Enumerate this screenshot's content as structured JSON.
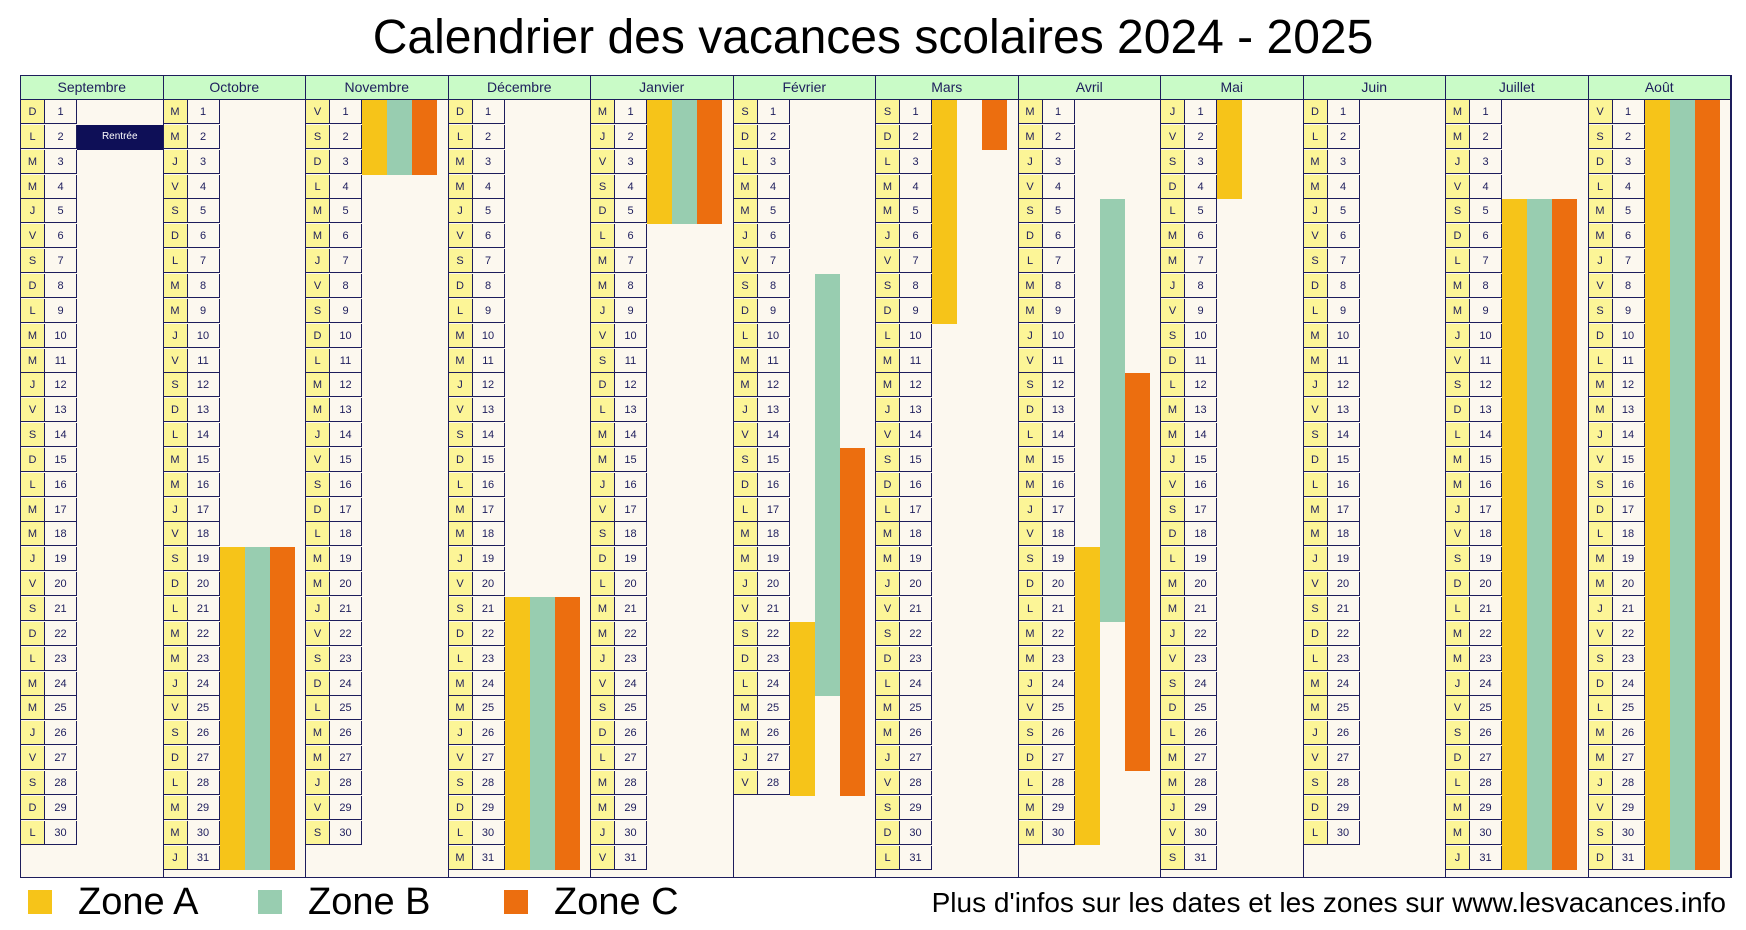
{
  "title": "Calendrier des vacances scolaires 2024 - 2025",
  "colors": {
    "zone_a": "#f6c419",
    "zone_b": "#98cdb0",
    "zone_c": "#ec6e0f",
    "badge": "#0e0f57"
  },
  "months": [
    {
      "name": "Septembre",
      "days": 30,
      "start": 0
    },
    {
      "name": "Octobre",
      "days": 31,
      "start": 2
    },
    {
      "name": "Novembre",
      "days": 30,
      "start": 5
    },
    {
      "name": "Décembre",
      "days": 31,
      "start": 0
    },
    {
      "name": "Janvier",
      "days": 31,
      "start": 3
    },
    {
      "name": "Février",
      "days": 28,
      "start": 6
    },
    {
      "name": "Mars",
      "days": 31,
      "start": 6
    },
    {
      "name": "Avril",
      "days": 30,
      "start": 2
    },
    {
      "name": "Mai",
      "days": 31,
      "start": 4
    },
    {
      "name": "Juin",
      "days": 30,
      "start": 0
    },
    {
      "name": "Juillet",
      "days": 31,
      "start": 2
    },
    {
      "name": "Août",
      "days": 31,
      "start": 5
    }
  ],
  "weekday_letters": [
    "D",
    "L",
    "M",
    "M",
    "J",
    "V",
    "S"
  ],
  "rentree": {
    "label": "Rentrée",
    "day": 2
  },
  "holidays": [
    {
      "month": 1,
      "zone": "A",
      "from": 19,
      "to": 31
    },
    {
      "month": 1,
      "zone": "B",
      "from": 19,
      "to": 31
    },
    {
      "month": 1,
      "zone": "C",
      "from": 19,
      "to": 31
    },
    {
      "month": 2,
      "zone": "A",
      "from": 1,
      "to": 3
    },
    {
      "month": 2,
      "zone": "B",
      "from": 1,
      "to": 3
    },
    {
      "month": 2,
      "zone": "C",
      "from": 1,
      "to": 3
    },
    {
      "month": 3,
      "zone": "A",
      "from": 21,
      "to": 31
    },
    {
      "month": 3,
      "zone": "B",
      "from": 21,
      "to": 31
    },
    {
      "month": 3,
      "zone": "C",
      "from": 21,
      "to": 31
    },
    {
      "month": 4,
      "zone": "A",
      "from": 1,
      "to": 5
    },
    {
      "month": 4,
      "zone": "B",
      "from": 1,
      "to": 5
    },
    {
      "month": 4,
      "zone": "C",
      "from": 1,
      "to": 5
    },
    {
      "month": 5,
      "zone": "A",
      "from": 22,
      "to": 28
    },
    {
      "month": 5,
      "zone": "B",
      "from": 8,
      "to": 24
    },
    {
      "month": 5,
      "zone": "C",
      "from": 15,
      "to": 28
    },
    {
      "month": 6,
      "zone": "A",
      "from": 1,
      "to": 9
    },
    {
      "month": 6,
      "zone": "C",
      "from": 1,
      "to": 2
    },
    {
      "month": 7,
      "zone": "A",
      "from": 19,
      "to": 30
    },
    {
      "month": 7,
      "zone": "B",
      "from": 5,
      "to": 21
    },
    {
      "month": 7,
      "zone": "C",
      "from": 12,
      "to": 27
    },
    {
      "month": 8,
      "zone": "A",
      "from": 1,
      "to": 4
    },
    {
      "month": 10,
      "zone": "A",
      "from": 5,
      "to": 31
    },
    {
      "month": 10,
      "zone": "B",
      "from": 5,
      "to": 31
    },
    {
      "month": 10,
      "zone": "C",
      "from": 5,
      "to": 31
    },
    {
      "month": 11,
      "zone": "A",
      "from": 1,
      "to": 31
    },
    {
      "month": 11,
      "zone": "B",
      "from": 1,
      "to": 31
    },
    {
      "month": 11,
      "zone": "C",
      "from": 1,
      "to": 31
    }
  ],
  "legend": [
    {
      "label": "Zone A",
      "color": "#f6c419"
    },
    {
      "label": "Zone B",
      "color": "#98cdb0"
    },
    {
      "label": "Zone C",
      "color": "#ec6e0f"
    }
  ],
  "info_text": "Plus d'infos sur les dates et les zones sur www.lesvacances.info"
}
